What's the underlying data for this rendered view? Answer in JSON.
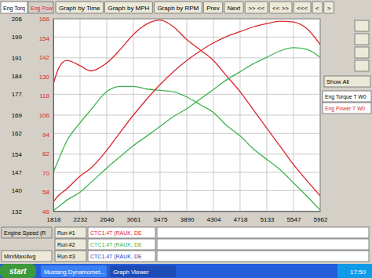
{
  "chart_data": {
    "type": "line",
    "x_label": "Engine Speed (R",
    "y_label": "Eng Torq",
    "y2_label": "Eng Pow",
    "x": [
      1818,
      1900,
      2025,
      2232,
      2400,
      2646,
      2850,
      3061,
      3270,
      3475,
      3680,
      3890,
      4100,
      4304,
      4510,
      4718,
      4925,
      5133,
      5340,
      5547,
      5750,
      5962
    ],
    "series": [
      {
        "color": "#d8262b",
        "values": [
          181,
          187,
          190,
          188,
          186,
          189,
          194,
          200,
          204,
          205.5,
          203,
          198,
          194,
          190,
          184,
          178,
          171,
          164,
          157,
          150,
          144,
          138
        ]
      },
      {
        "color": "#3fb34f",
        "values": [
          147,
          152,
          159,
          166,
          171,
          178,
          180,
          180,
          179,
          178.5,
          178,
          176,
          173,
          170,
          165,
          161,
          156,
          152,
          148,
          143,
          138,
          132.5
        ]
      },
      {
        "color": "#d8262b",
        "axis": "y2",
        "values": [
          52,
          56,
          60,
          68,
          73,
          84,
          95,
          106,
          116,
          125,
          133,
          140,
          146,
          151,
          155,
          158,
          161,
          163,
          164.5,
          164,
          160,
          150
        ]
      },
      {
        "color": "#3fb34f",
        "axis": "y2",
        "values": [
          46.5,
          49,
          53,
          58,
          64,
          73,
          80,
          87,
          93,
          99,
          105,
          110,
          116,
          122,
          128,
          133,
          138,
          142,
          146,
          148,
          147,
          142
        ]
      }
    ],
    "xlim": [
      1818,
      5962
    ],
    "xticks": [
      1818,
      2232,
      2646,
      3061,
      3475,
      3890,
      4304,
      4718,
      5133,
      5547,
      5962
    ],
    "ylim": [
      132,
      206
    ],
    "yticks": [
      132,
      140,
      147,
      154,
      162,
      169,
      177,
      184,
      191,
      199,
      206
    ],
    "y2lim": [
      46,
      166
    ],
    "y2ticks": [
      46,
      58,
      70,
      82,
      94,
      106,
      118,
      130,
      142,
      154,
      166
    ],
    "grid": true
  },
  "toolbar": {
    "buttons": [
      "Graph by Time",
      "Graph by MPH",
      "Graph by RPM",
      "Prev",
      "Next",
      ">> <<",
      "<< >>",
      "<<<",
      "<",
      ">"
    ]
  },
  "side_panel": {
    "button": "Show All",
    "channels": [
      {
        "label": "Eng Torque T W0",
        "color": "#000000"
      },
      {
        "label": "Eng Power T W0",
        "color": "#d8262b"
      }
    ]
  },
  "runs": [
    {
      "label": "Run #1",
      "file": "CTC1.4T (RAUK, DE",
      "color": "#d8262b"
    },
    {
      "label": "Run #2",
      "file": "CTC1.4T (RAUK, DE",
      "color": "#3fb34f"
    },
    {
      "label": "Run #3",
      "file": "CTC1.4T (RAUK, DE",
      "color": "#1f3fb8"
    }
  ],
  "summary_button": "Min/Max/Avg",
  "taskbar": {
    "start": "start",
    "tasks": [
      "Mustang Dynamomet...",
      "Graph Viewer"
    ],
    "clock": "17:50"
  }
}
